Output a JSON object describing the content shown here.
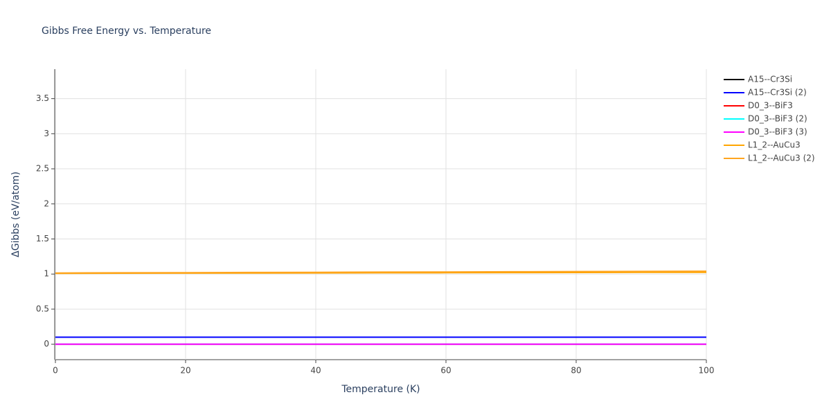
{
  "chart_data": {
    "type": "line",
    "title": "Gibbs Free Energy vs. Temperature",
    "x_label": "Temperature (K)",
    "y_label": "ΔGibbs (eV/atom)",
    "x": [
      0,
      10,
      20,
      30,
      40,
      50,
      60,
      70,
      80,
      90,
      100
    ],
    "series": [
      {
        "name": "A15--Cr3Si",
        "color": "#000000",
        "values": [
          0.1,
          0.1,
          0.1,
          0.1,
          0.1,
          0.1,
          0.1,
          0.1,
          0.1,
          0.1,
          0.1
        ]
      },
      {
        "name": "A15--Cr3Si (2)",
        "color": "#0000ff",
        "values": [
          0.1,
          0.1,
          0.1,
          0.1,
          0.1,
          0.1,
          0.1,
          0.1,
          0.1,
          0.1,
          0.1
        ]
      },
      {
        "name": "D0_3--BiF3",
        "color": "#ff0000",
        "values": [
          0,
          0,
          0,
          0,
          0,
          0,
          0,
          0,
          0,
          0,
          0
        ]
      },
      {
        "name": "D0_3--BiF3 (2)",
        "color": "#00ffff",
        "values": [
          0,
          0,
          0,
          0,
          0,
          0,
          0,
          0,
          0,
          0,
          0
        ]
      },
      {
        "name": "D0_3--BiF3 (3)",
        "color": "#ff00ff",
        "values": [
          0,
          0,
          0,
          0,
          0,
          0,
          0,
          0,
          0,
          0,
          0
        ]
      },
      {
        "name": "L1_2--AuCu3",
        "color": "#ffa500",
        "values": [
          1.01,
          1.012,
          1.013,
          1.015,
          1.016,
          1.018,
          1.019,
          1.021,
          1.022,
          1.024,
          1.025
        ]
      },
      {
        "name": "L1_2--AuCu3 (2)",
        "color": "#ffa51f",
        "values": [
          1.015,
          1.018,
          1.02,
          1.023,
          1.025,
          1.028,
          1.03,
          1.033,
          1.035,
          1.038,
          1.04
        ]
      }
    ],
    "xlim": [
      0,
      100
    ],
    "xticks": [
      0,
      20,
      40,
      60,
      80,
      100
    ],
    "ylim": [
      -0.22,
      3.92
    ],
    "yticks": [
      0,
      0.5,
      1,
      1.5,
      2,
      2.5,
      3,
      3.5
    ],
    "grid": true,
    "legend": "right"
  }
}
